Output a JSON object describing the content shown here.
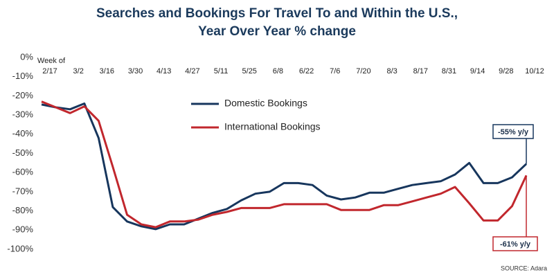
{
  "chart_data": {
    "type": "line",
    "title": [
      "Searches and Bookings For Travel To and Within the U.S.,",
      "Year Over Year % change"
    ],
    "x_label": "Week of",
    "source": "SOURCE: Adara",
    "categories": [
      "2/17",
      null,
      "3/2",
      null,
      "3/16",
      null,
      "3/30",
      null,
      "4/13",
      null,
      "4/27",
      null,
      "5/11",
      null,
      "5/25",
      null,
      "6/8",
      null,
      "6/22",
      null,
      "7/6",
      null,
      "7/20",
      null,
      "8/3",
      null,
      "8/17",
      null,
      "8/31",
      null,
      "9/14",
      null,
      "9/28",
      null,
      "10/12"
    ],
    "series": [
      {
        "name": "Domestic Bookings",
        "color": "#17365d",
        "values": [
          -24.5,
          -26,
          -27,
          -24,
          -42,
          -78,
          -85.5,
          -88,
          -89.5,
          -87,
          -87,
          -84,
          -81,
          -79,
          -74.5,
          -71,
          -70,
          -65.5,
          -65.5,
          -66.5,
          -72,
          -74,
          -73,
          -70.5,
          -70.5,
          -68.5,
          -66.5,
          -65.5,
          -64.5,
          -61,
          -55,
          -65.5,
          -65.5,
          -62.5,
          -55.5
        ]
      },
      {
        "name": "International Bookings",
        "color": "#c1272d",
        "values": [
          -23,
          -26,
          -29,
          -25.5,
          -33,
          -57,
          -82,
          -87,
          -88.5,
          -85.5,
          -85.5,
          -84.5,
          -82,
          -80.5,
          -78.5,
          -78.5,
          -78.5,
          -76.5,
          -76.5,
          -76.5,
          -76.5,
          -79.5,
          -79.5,
          -79.5,
          -77,
          -77,
          -75,
          -73,
          -71,
          -67.5,
          -76,
          -85,
          -85,
          -77.5,
          -61.5
        ]
      }
    ],
    "annotations": [
      "-55% y/y",
      "-61% y/y"
    ],
    "ylim": [
      -100,
      0
    ],
    "yticks": [
      {
        "value": 0,
        "label": "0%"
      },
      {
        "value": -10,
        "label": "-10%"
      },
      {
        "value": -20,
        "label": "-20%"
      },
      {
        "value": -30,
        "label": "-30%"
      },
      {
        "value": -40,
        "label": "-40%"
      },
      {
        "value": -50,
        "label": "-50%"
      },
      {
        "value": -60,
        "label": "-60%"
      },
      {
        "value": -70,
        "label": "-70%"
      },
      {
        "value": -80,
        "label": "-80%"
      },
      {
        "value": -90,
        "label": "-90%"
      },
      {
        "value": -100,
        "label": "-100%"
      }
    ],
    "grid": false
  }
}
